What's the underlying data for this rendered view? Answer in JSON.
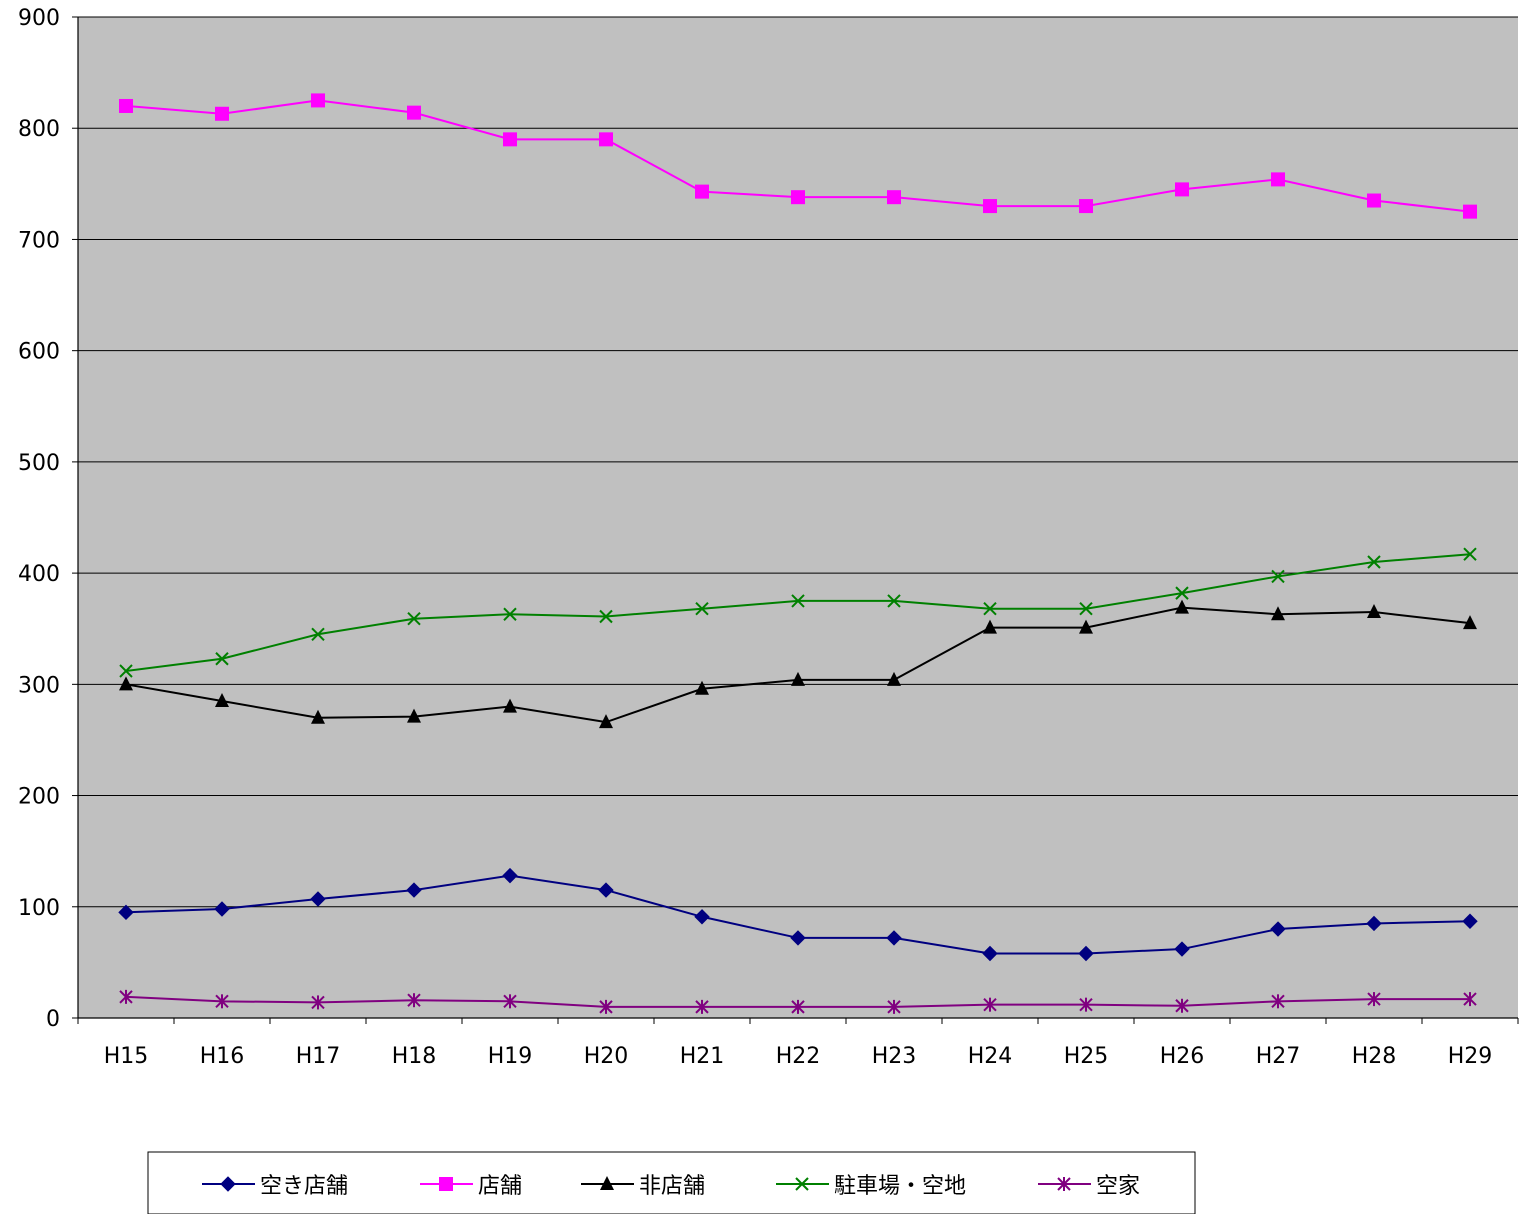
{
  "chart_data": {
    "type": "line",
    "categories": [
      "H15",
      "H16",
      "H17",
      "H18",
      "H19",
      "H20",
      "H21",
      "H22",
      "H23",
      "H24",
      "H25",
      "H26",
      "H27",
      "H28",
      "H29"
    ],
    "ylim": [
      0,
      900
    ],
    "yticks": [
      0,
      100,
      200,
      300,
      400,
      500,
      600,
      700,
      800,
      900
    ],
    "grid": true,
    "plot_background": "#c0c0c0",
    "legend_position": "bottom",
    "series": [
      {
        "name": "空き店舗",
        "color": "#000080",
        "marker": "diamond",
        "values": [
          95,
          98,
          107,
          115,
          128,
          115,
          91,
          72,
          72,
          58,
          58,
          62,
          80,
          85,
          87
        ]
      },
      {
        "name": "店舗",
        "color": "#ff00ff",
        "marker": "square",
        "values": [
          820,
          813,
          825,
          814,
          790,
          790,
          743,
          738,
          738,
          730,
          730,
          745,
          754,
          735,
          725
        ]
      },
      {
        "name": "非店舗",
        "color": "#000000",
        "marker": "triangle",
        "values": [
          300,
          285,
          270,
          271,
          280,
          266,
          296,
          304,
          304,
          351,
          351,
          369,
          363,
          365,
          355
        ]
      },
      {
        "name": "駐車場・空地",
        "color": "#008000",
        "marker": "x",
        "values": [
          312,
          323,
          345,
          359,
          363,
          361,
          368,
          375,
          375,
          368,
          368,
          382,
          397,
          410,
          417
        ]
      },
      {
        "name": "空家",
        "color": "#800080",
        "marker": "star",
        "values": [
          19,
          15,
          14,
          16,
          15,
          10,
          10,
          10,
          10,
          12,
          12,
          11,
          15,
          17,
          17
        ]
      }
    ]
  }
}
